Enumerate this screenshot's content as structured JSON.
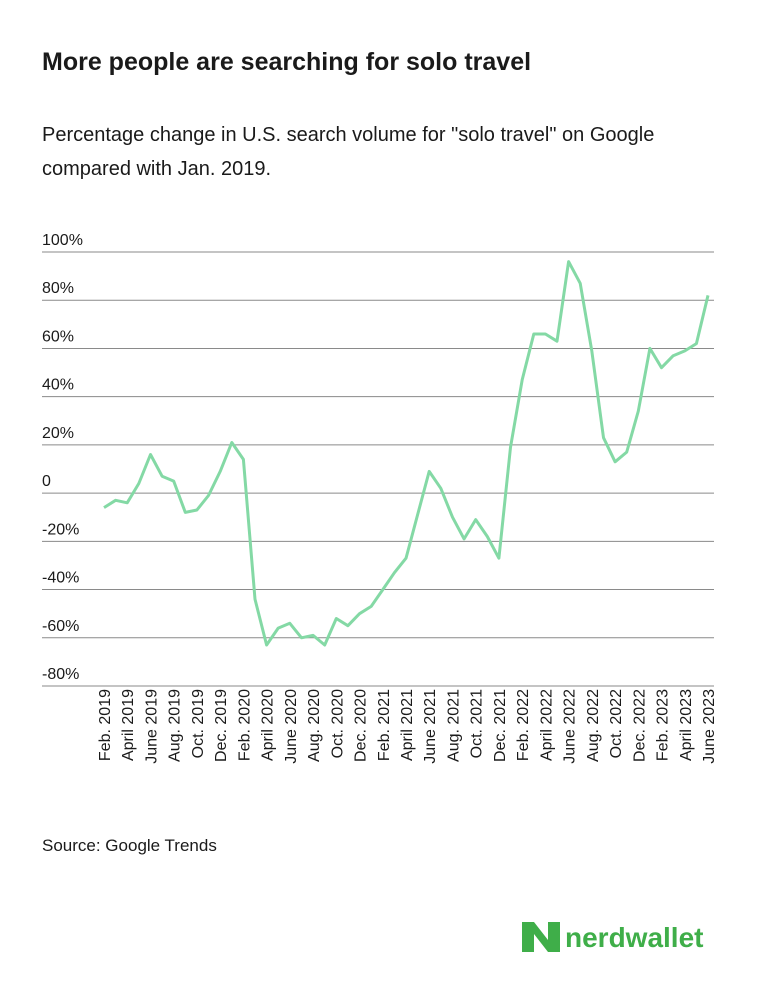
{
  "chart_data": {
    "type": "line",
    "title": "More people are searching for solo travel",
    "subtitle": "Percentage change in U.S. search volume for \"solo travel\" on Google compared with Jan. 2019.",
    "categories": [
      "Feb. 2019",
      null,
      "April 2019",
      null,
      "June 2019",
      null,
      "Aug. 2019",
      null,
      "Oct. 2019",
      null,
      "Dec. 2019",
      null,
      "Feb. 2020",
      null,
      "April 2020",
      null,
      "June 2020",
      null,
      "Aug. 2020",
      null,
      "Oct. 2020",
      null,
      "Dec. 2020",
      null,
      "Feb. 2021",
      null,
      "April 2021",
      null,
      "June 2021",
      null,
      "Aug. 2021",
      null,
      "Oct. 2021",
      null,
      "Dec. 2021",
      null,
      "Feb. 2022",
      null,
      "April 2022",
      null,
      "June 2022",
      null,
      "Aug. 2022",
      null,
      "Oct. 2022",
      null,
      "Dec. 2022",
      null,
      "Feb. 2023",
      null,
      "April 2023",
      null,
      "June 2023"
    ],
    "series": [
      {
        "color": "#84d9a5",
        "values": [
          -6,
          -3,
          -4,
          4,
          16,
          7,
          5,
          -8,
          -7,
          -1,
          9,
          21,
          14,
          -44,
          -63,
          -56,
          -54,
          -60,
          -59,
          -63,
          -52,
          -55,
          -50,
          -47,
          -40,
          -33,
          -27,
          -9,
          9,
          2,
          -10,
          -19,
          -11,
          -18,
          -27,
          19,
          47,
          66,
          66,
          63,
          96,
          87,
          59,
          23,
          13,
          17,
          34,
          60,
          52,
          57,
          59,
          62,
          82
        ]
      }
    ],
    "ylim": [
      -80,
      100
    ],
    "yticks": [
      {
        "value": -80,
        "label": "-80%"
      },
      {
        "value": -60,
        "label": "-60%"
      },
      {
        "value": -40,
        "label": "-40%"
      },
      {
        "value": -20,
        "label": "-20%"
      },
      0,
      {
        "value": 20,
        "label": "20%"
      },
      {
        "value": 40,
        "label": "40%"
      },
      {
        "value": 60,
        "label": "60%"
      },
      {
        "value": 80,
        "label": "80%"
      },
      {
        "value": 100,
        "label": "100%"
      }
    ],
    "grid": true,
    "source": "Source: Google Trends",
    "brand": "nerdwallet"
  }
}
